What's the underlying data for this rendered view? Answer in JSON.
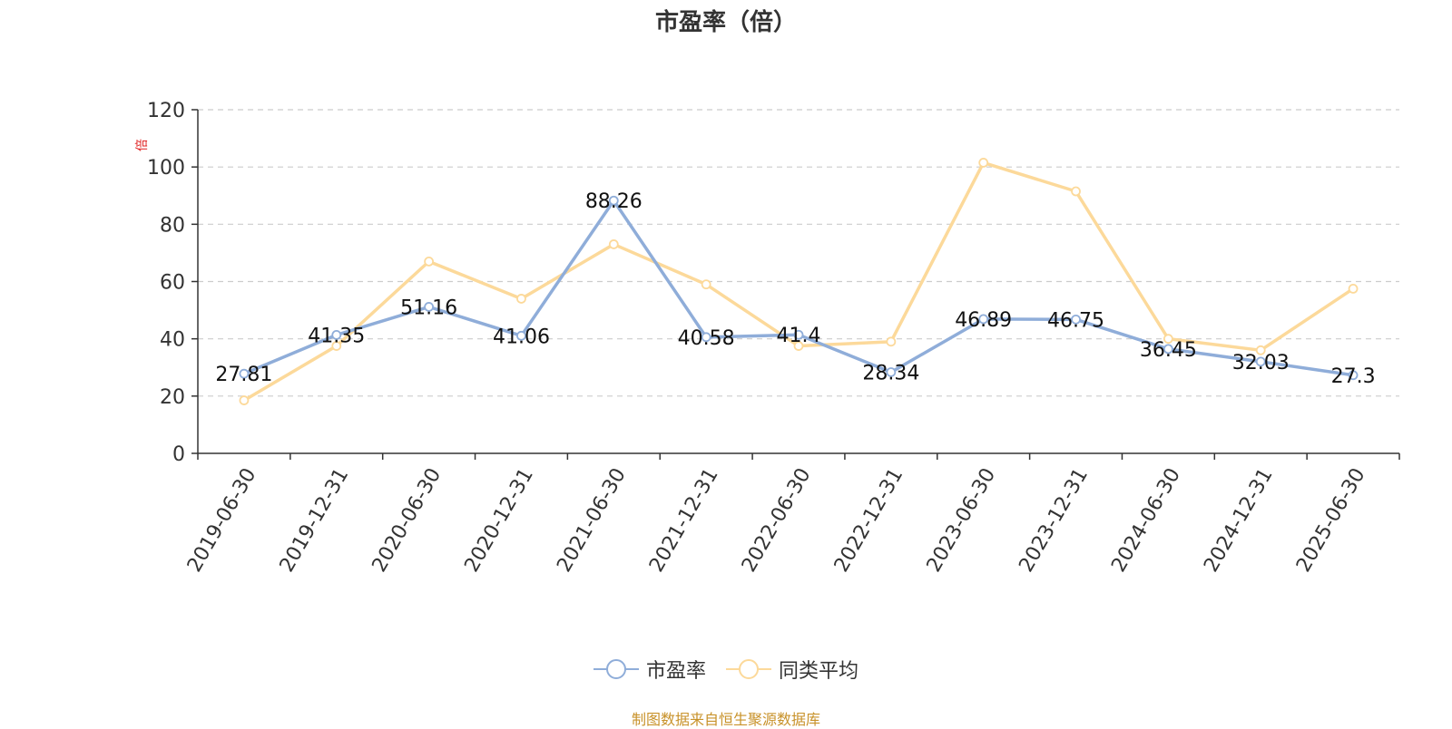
{
  "chart_data": {
    "type": "line",
    "title": "市盈率（倍）",
    "y_unit": "倍",
    "categories": [
      "2019-06-30",
      "2019-12-31",
      "2020-06-30",
      "2020-12-31",
      "2021-06-30",
      "2021-12-31",
      "2022-06-30",
      "2022-12-31",
      "2023-06-30",
      "2023-12-31",
      "2024-06-30",
      "2024-12-31",
      "2025-06-30"
    ],
    "ylim": [
      0,
      120
    ],
    "yticks": [
      0,
      20,
      40,
      60,
      80,
      100,
      120
    ],
    "grid": true,
    "legend_position": "bottom",
    "series": [
      {
        "name": "市盈率",
        "color": "#8fadd9",
        "values": [
          27.81,
          41.35,
          51.16,
          41.06,
          88.26,
          40.58,
          41.4,
          28.34,
          46.89,
          46.75,
          36.45,
          32.03,
          27.3
        ],
        "labels": [
          "27.81",
          "41.35",
          "51.16",
          "41.06",
          "88.26",
          "40.58",
          "41.4",
          "28.34",
          "46.89",
          "46.75",
          "36.45",
          "32.03",
          "27.3"
        ]
      },
      {
        "name": "同类平均",
        "color": "#fcd99a",
        "values": [
          18.5,
          37.5,
          67,
          54,
          73,
          59,
          37.5,
          39,
          101.5,
          91.5,
          40,
          36,
          57.5
        ]
      }
    ]
  },
  "footer": "制图数据来自恒生聚源数据库"
}
